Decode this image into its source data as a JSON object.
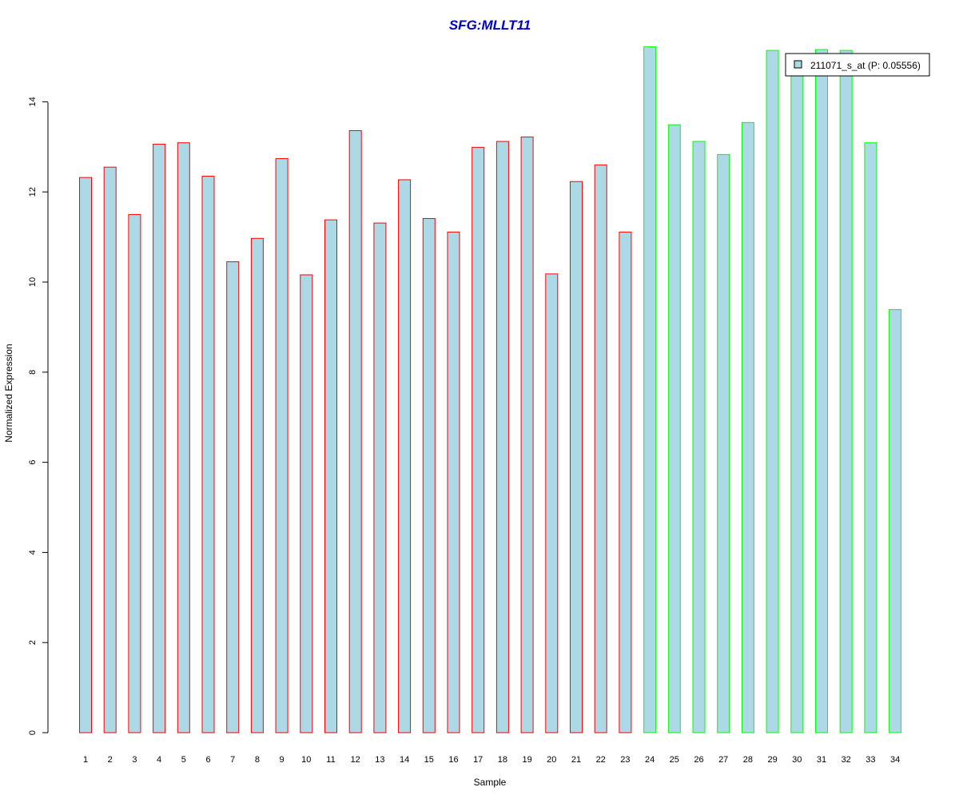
{
  "chart_data": {
    "type": "bar",
    "title": "SFG:MLLT11",
    "xlabel": "Sample",
    "ylabel": "Normalized Expression",
    "ylim": [
      0,
      15.5
    ],
    "yticks": [
      0,
      2,
      4,
      6,
      8,
      10,
      12,
      14
    ],
    "categories": [
      "1",
      "2",
      "3",
      "4",
      "5",
      "6",
      "7",
      "8",
      "9",
      "10",
      "11",
      "12",
      "13",
      "14",
      "15",
      "16",
      "17",
      "18",
      "19",
      "20",
      "21",
      "22",
      "23",
      "24",
      "25",
      "26",
      "27",
      "28",
      "29",
      "30",
      "31",
      "32",
      "33",
      "34"
    ],
    "series": [
      {
        "name": "211071_s_at (P: 0.05556)",
        "values": [
          12.32,
          12.55,
          11.5,
          13.06,
          13.09,
          12.35,
          10.45,
          10.97,
          12.74,
          10.16,
          11.38,
          13.36,
          11.31,
          12.27,
          11.41,
          11.11,
          12.99,
          13.12,
          13.22,
          10.18,
          12.23,
          12.6,
          11.11,
          15.22,
          13.49,
          13.12,
          12.83,
          13.54,
          15.14,
          14.65,
          15.16,
          15.14,
          13.09,
          9.39
        ]
      }
    ],
    "group_of_bar": [
      "red",
      "red",
      "red",
      "red",
      "red",
      "red",
      "red",
      "red",
      "red",
      "red",
      "red",
      "red",
      "red",
      "red",
      "red",
      "red",
      "red",
      "red",
      "red",
      "red",
      "red",
      "red",
      "red",
      "green",
      "green",
      "green",
      "green",
      "green",
      "green",
      "green",
      "green",
      "green",
      "green",
      "green"
    ],
    "colors": {
      "fill": "#add8e6",
      "red": "#ff0000",
      "green": "#00ff00",
      "title": "#0000cd",
      "axis": "#000000"
    },
    "legend": {
      "label": "211071_s_at (P: 0.05556)",
      "position": "top-right"
    },
    "grid": false
  }
}
